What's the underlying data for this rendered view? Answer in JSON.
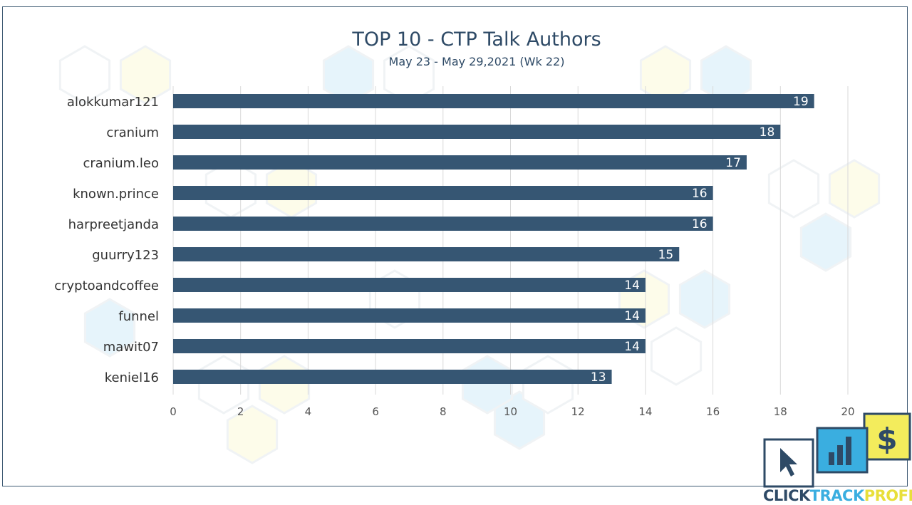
{
  "chart_data": {
    "type": "bar",
    "orientation": "horizontal",
    "title": "TOP 10 - CTP Talk Authors",
    "subtitle": "May 23 - May 29,2021 (Wk 22)",
    "categories": [
      "alokkumar121",
      "cranium",
      "cranium.leo",
      "known.prince",
      "harpreetjanda",
      "guurry123",
      "cryptoandcoffee",
      "funnel",
      "mawit07",
      "keniel16"
    ],
    "values": [
      19,
      18,
      17,
      16,
      16,
      15,
      14,
      14,
      14,
      13
    ],
    "xlim": [
      0,
      20
    ],
    "xticks": [
      0,
      2,
      4,
      6,
      8,
      10,
      12,
      14,
      16,
      18,
      20
    ],
    "grid": true,
    "legend": "none",
    "bar_color": "#365673",
    "data_labels": true
  },
  "logo": {
    "parts": [
      "CLICK",
      "TRACK",
      "PROFIT"
    ],
    "dollar_glyph": "$",
    "colors": {
      "navy": "#2e4a66",
      "blue": "#3aaee0",
      "yellow": "#f3ec5c"
    },
    "icons": [
      "cursor-icon",
      "bar-chart-icon",
      "dollar-icon"
    ]
  }
}
